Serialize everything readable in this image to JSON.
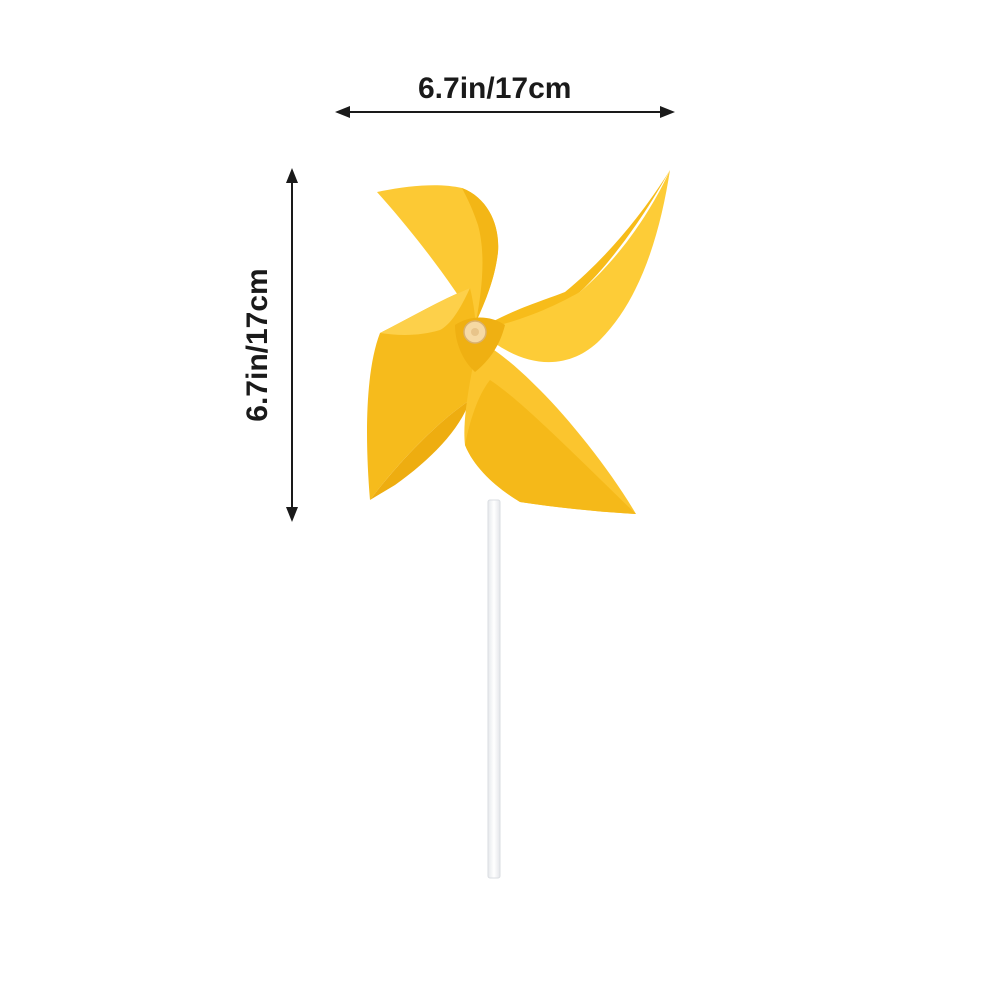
{
  "dimensions": {
    "width_label": "6.7in/17cm",
    "height_label": "6.7in/17cm"
  },
  "colors": {
    "blade_light": "#FDCC3A",
    "blade_mid": "#F8BE1E",
    "blade_dark": "#EBA70C",
    "stick": "#F4F5F7",
    "arrow": "#1a1a1a",
    "pin": "#F6D9A4"
  }
}
